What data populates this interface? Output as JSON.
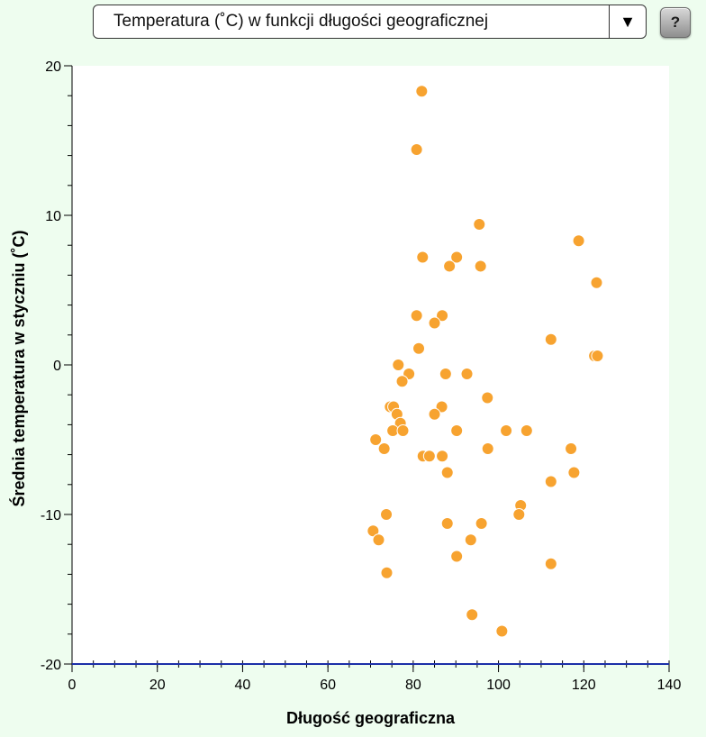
{
  "selector": {
    "label": "Temperatura (˚C) w funkcji długości geograficznej",
    "arrow": "▼"
  },
  "help": {
    "label": "?"
  },
  "colors": {
    "background": "#eefdef",
    "point": "#f7a330",
    "x_axis_line": "#1c2fa8"
  },
  "chart_data": {
    "type": "scatter",
    "xlabel": "Długość geograficzna",
    "ylabel": "Średnia temperatura w styczniu (˚C)",
    "xlim": [
      0,
      140
    ],
    "ylim": [
      -20,
      20
    ],
    "x_ticks": [
      0,
      20,
      40,
      60,
      80,
      100,
      120,
      140
    ],
    "y_ticks": [
      -20,
      -10,
      0,
      10,
      20
    ],
    "x_minor_step": 5,
    "y_minor_step": 2,
    "grid": false,
    "points": [
      {
        "x": 82,
        "y": 18.3
      },
      {
        "x": 80.8,
        "y": 14.4
      },
      {
        "x": 95.5,
        "y": 9.4
      },
      {
        "x": 118.8,
        "y": 8.3
      },
      {
        "x": 82.2,
        "y": 7.2
      },
      {
        "x": 90.2,
        "y": 7.2
      },
      {
        "x": 88.5,
        "y": 6.6
      },
      {
        "x": 95.8,
        "y": 6.6
      },
      {
        "x": 123,
        "y": 5.5
      },
      {
        "x": 80.8,
        "y": 3.3
      },
      {
        "x": 86.8,
        "y": 3.3
      },
      {
        "x": 85,
        "y": 2.8
      },
      {
        "x": 112.3,
        "y": 1.7
      },
      {
        "x": 81.3,
        "y": 1.1
      },
      {
        "x": 122.5,
        "y": 0.6
      },
      {
        "x": 123.2,
        "y": 0.6
      },
      {
        "x": 76.5,
        "y": 0
      },
      {
        "x": 79,
        "y": -0.6
      },
      {
        "x": 87.6,
        "y": -0.6
      },
      {
        "x": 92.6,
        "y": -0.6
      },
      {
        "x": 77.4,
        "y": -1.1
      },
      {
        "x": 97.4,
        "y": -2.2
      },
      {
        "x": 74.6,
        "y": -2.8
      },
      {
        "x": 75.4,
        "y": -2.8
      },
      {
        "x": 86.7,
        "y": -2.8
      },
      {
        "x": 76.2,
        "y": -3.3
      },
      {
        "x": 85,
        "y": -3.3
      },
      {
        "x": 77,
        "y": -3.9
      },
      {
        "x": 75.2,
        "y": -4.4
      },
      {
        "x": 77.6,
        "y": -4.4
      },
      {
        "x": 90.2,
        "y": -4.4
      },
      {
        "x": 101.8,
        "y": -4.4
      },
      {
        "x": 106.6,
        "y": -4.4
      },
      {
        "x": 71.2,
        "y": -5
      },
      {
        "x": 73.2,
        "y": -5.6
      },
      {
        "x": 97.5,
        "y": -5.6
      },
      {
        "x": 117,
        "y": -5.6
      },
      {
        "x": 82.3,
        "y": -6.1
      },
      {
        "x": 83.8,
        "y": -6.1
      },
      {
        "x": 86.8,
        "y": -6.1
      },
      {
        "x": 88,
        "y": -7.2
      },
      {
        "x": 117.7,
        "y": -7.2
      },
      {
        "x": 112.3,
        "y": -7.8
      },
      {
        "x": 105.2,
        "y": -9.4
      },
      {
        "x": 73.7,
        "y": -10
      },
      {
        "x": 104.8,
        "y": -10
      },
      {
        "x": 88,
        "y": -10.6
      },
      {
        "x": 96,
        "y": -10.6
      },
      {
        "x": 70.6,
        "y": -11.1
      },
      {
        "x": 71.9,
        "y": -11.7
      },
      {
        "x": 93.5,
        "y": -11.7
      },
      {
        "x": 90.2,
        "y": -12.8
      },
      {
        "x": 112.3,
        "y": -13.3
      },
      {
        "x": 73.8,
        "y": -13.9
      },
      {
        "x": 93.8,
        "y": -16.7
      },
      {
        "x": 100.8,
        "y": -17.8
      }
    ]
  }
}
